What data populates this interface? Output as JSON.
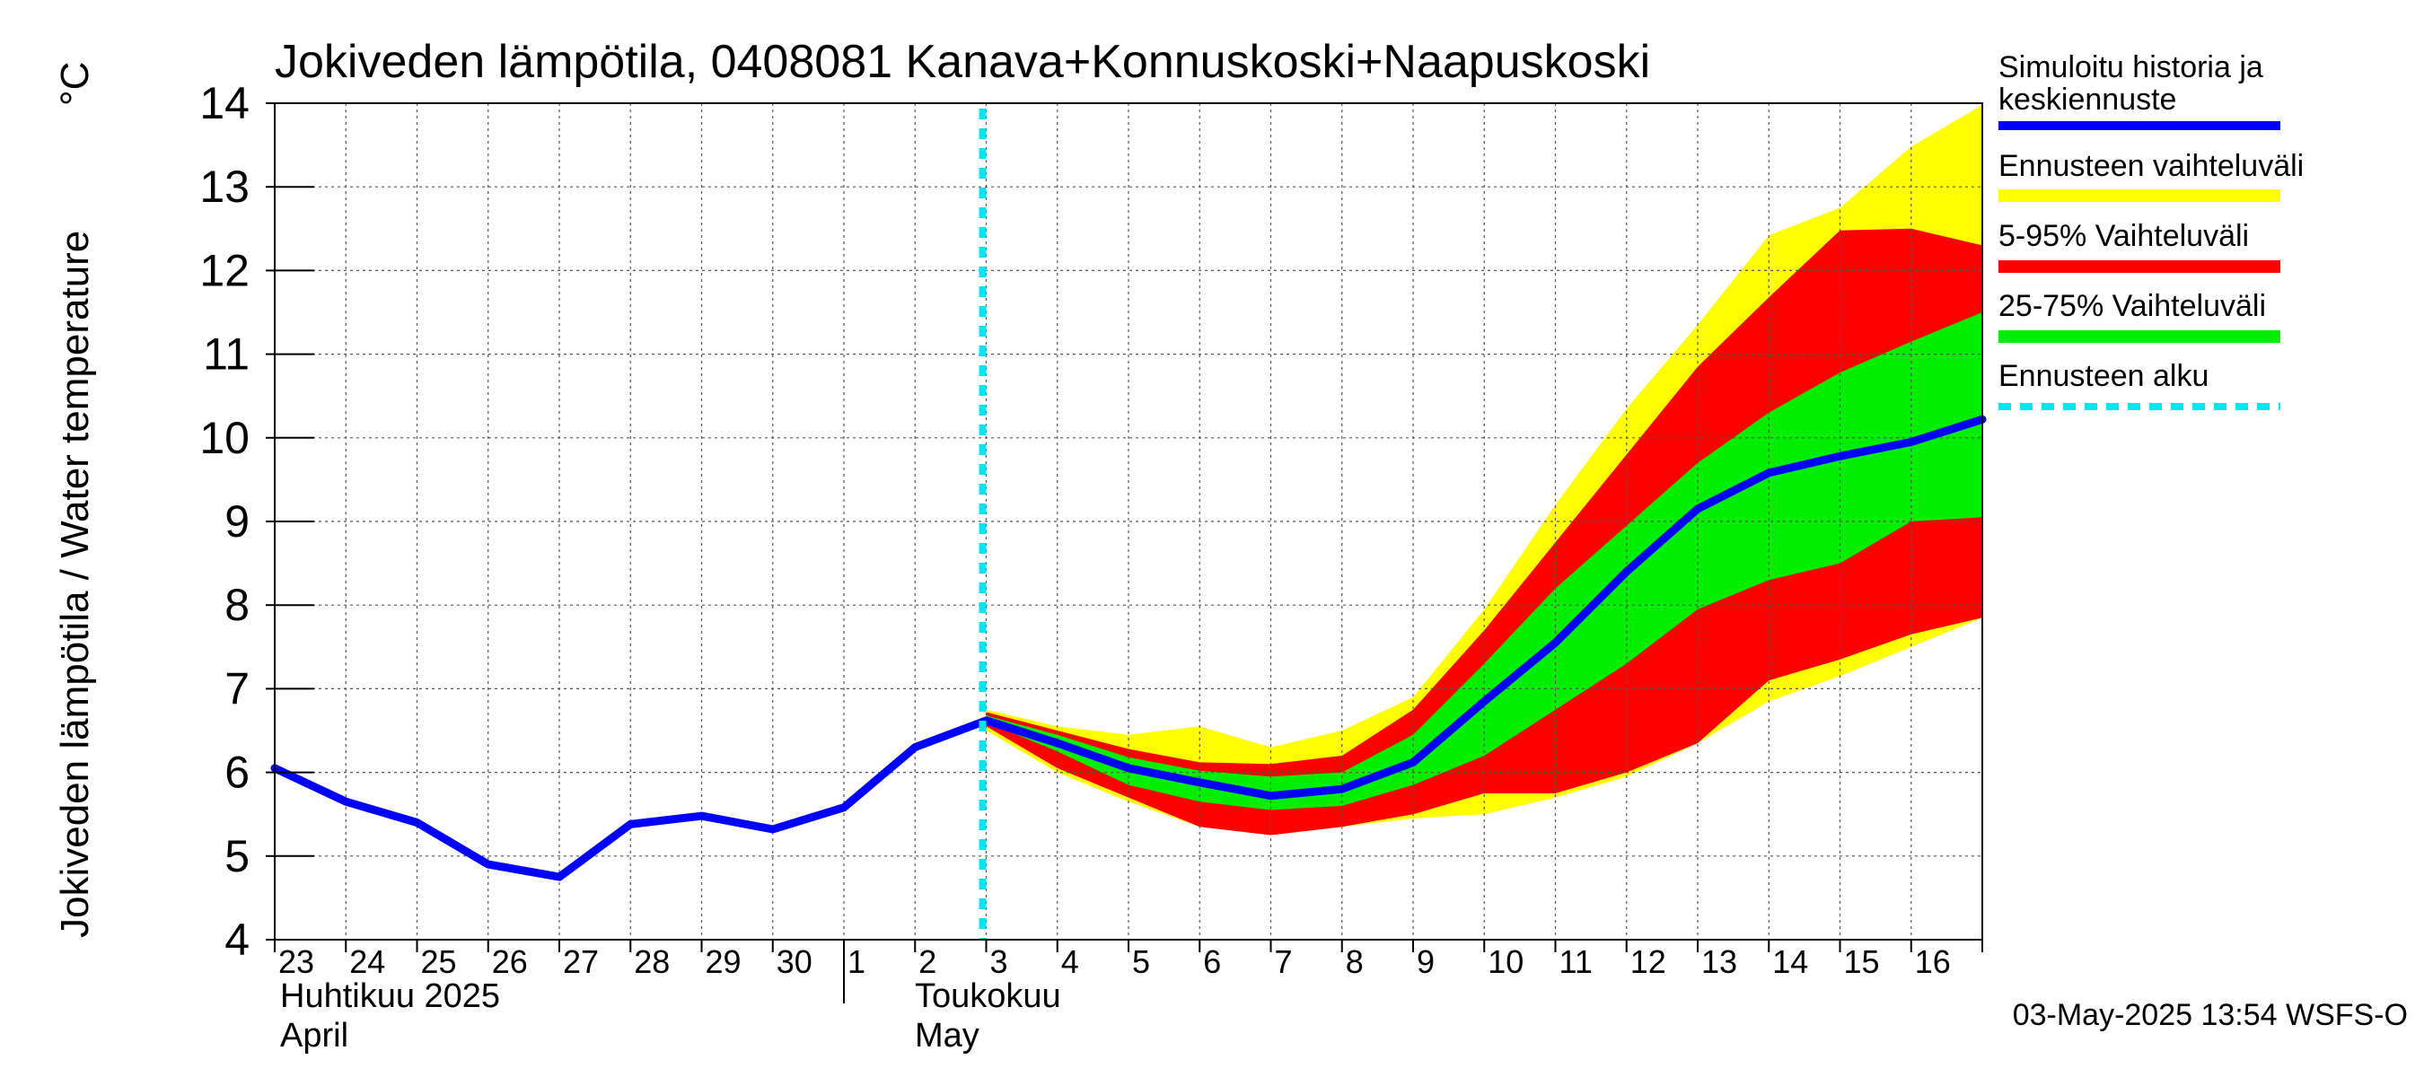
{
  "chart_data": {
    "type": "area",
    "title": "Jokiveden lämpötila, 0408081 Kanava+Konnuskoski+Naapuskoski",
    "ylabel": "Jokiveden lämpötila / Water temperature",
    "yunit": "°C",
    "ylim": [
      4,
      14
    ],
    "yticks": [
      4,
      5,
      6,
      7,
      8,
      9,
      10,
      11,
      12,
      13,
      14
    ],
    "grid": true,
    "legend_position": "right",
    "x_day_labels": [
      "23",
      "24",
      "25",
      "26",
      "27",
      "28",
      "29",
      "30",
      "1",
      "2",
      "3",
      "4",
      "5",
      "6",
      "7",
      "8",
      "9",
      "10",
      "11",
      "12",
      "13",
      "14",
      "15",
      "16"
    ],
    "month_labels": [
      {
        "line1": "Huhtikuu  2025",
        "line2": "April"
      },
      {
        "line1": "Toukokuu",
        "line2": "May"
      }
    ],
    "x": [
      "2025-04-23",
      "2025-04-24",
      "2025-04-25",
      "2025-04-26",
      "2025-04-27",
      "2025-04-28",
      "2025-04-29",
      "2025-04-30",
      "2025-05-01",
      "2025-05-02",
      "2025-05-03",
      "2025-05-04",
      "2025-05-05",
      "2025-05-06",
      "2025-05-07",
      "2025-05-08",
      "2025-05-09",
      "2025-05-10",
      "2025-05-11",
      "2025-05-12",
      "2025-05-13",
      "2025-05-14",
      "2025-05-15",
      "2025-05-16",
      "2025-05-17"
    ],
    "forecast_start": "2025-05-03",
    "forecast_x": [
      "2025-05-03",
      "2025-05-04",
      "2025-05-05",
      "2025-05-06",
      "2025-05-07",
      "2025-05-08",
      "2025-05-09",
      "2025-05-10",
      "2025-05-11",
      "2025-05-12",
      "2025-05-13",
      "2025-05-14",
      "2025-05-15",
      "2025-05-16",
      "2025-05-17"
    ],
    "series": [
      {
        "name": "Simuloitu historia ja keskiennuste",
        "kind": "line",
        "color": "#0000ff",
        "values": [
          6.05,
          5.65,
          5.4,
          4.9,
          4.75,
          5.38,
          5.48,
          5.32,
          5.58,
          6.3,
          6.62,
          6.35,
          6.05,
          5.88,
          5.72,
          5.8,
          6.12,
          6.85,
          7.55,
          8.4,
          9.15,
          9.58,
          9.78,
          9.95,
          10.22
        ]
      },
      {
        "name": "Ennusteen vaihteluväli",
        "kind": "band",
        "color": "#ffff00",
        "lower": [
          6.5,
          6.0,
          5.65,
          5.35,
          5.25,
          5.35,
          5.45,
          5.5,
          5.7,
          5.95,
          6.35,
          6.85,
          7.15,
          7.5,
          7.85
        ],
        "upper": [
          6.75,
          6.55,
          6.45,
          6.55,
          6.3,
          6.5,
          6.9,
          7.95,
          9.2,
          10.35,
          11.35,
          12.42,
          12.75,
          13.48,
          13.98
        ]
      },
      {
        "name": "5-95% Vaihteluväli",
        "kind": "band",
        "color": "#ff0000",
        "lower": [
          6.55,
          6.05,
          5.7,
          5.35,
          5.25,
          5.35,
          5.5,
          5.75,
          5.75,
          6.0,
          6.35,
          7.1,
          7.35,
          7.65,
          7.85
        ],
        "upper": [
          6.72,
          6.5,
          6.28,
          6.12,
          6.1,
          6.2,
          6.75,
          7.7,
          8.75,
          9.8,
          10.85,
          11.68,
          12.48,
          12.5,
          12.3
        ]
      },
      {
        "name": "25-75% Vaihteluväli",
        "kind": "band",
        "color": "#00ee00",
        "lower": [
          6.6,
          6.25,
          5.85,
          5.65,
          5.55,
          5.6,
          5.85,
          6.2,
          6.75,
          7.3,
          7.95,
          8.3,
          8.5,
          9.0,
          9.05
        ],
        "upper": [
          6.68,
          6.45,
          6.18,
          6.02,
          5.95,
          6.0,
          6.45,
          7.3,
          8.2,
          8.95,
          9.7,
          10.3,
          10.78,
          11.15,
          11.5
        ]
      },
      {
        "name": "Ennusteen alku",
        "kind": "vline",
        "color": "#00e5ee",
        "x": "2025-05-03"
      }
    ],
    "footer": "03-May-2025 13:54 WSFS-O"
  }
}
